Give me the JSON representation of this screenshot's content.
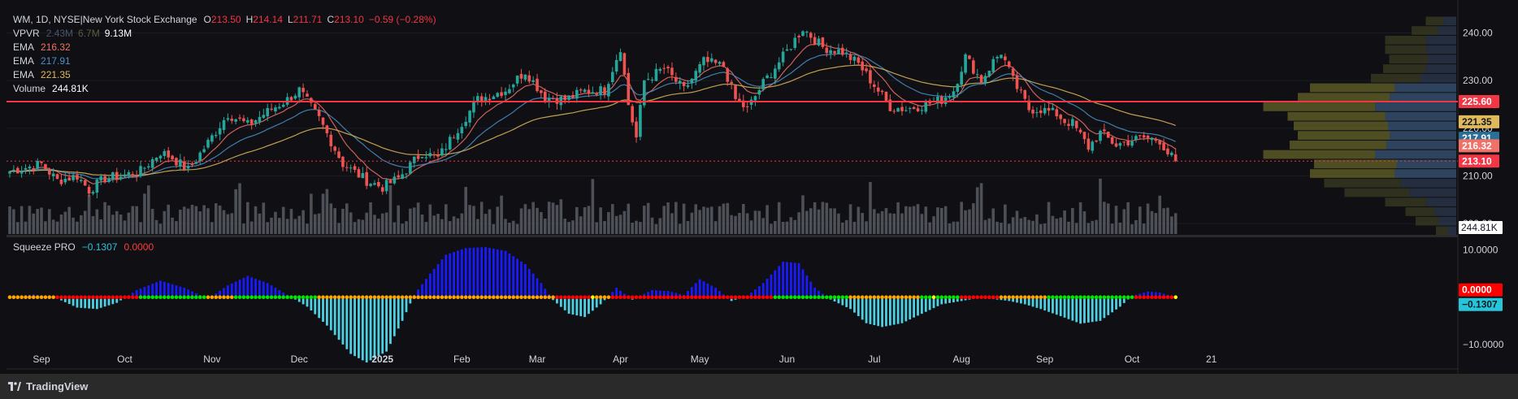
{
  "header": {
    "symbol_line": "WM, 1D, NYSE|New York Stock Exchange",
    "open_label": "O",
    "open_value": "213.50",
    "high_label": "H",
    "high_value": "214.14",
    "low_label": "L",
    "low_value": "211.71",
    "close_label": "C",
    "close_value": "213.10",
    "change": "−0.59 (−0.28%)"
  },
  "indicators": {
    "vpvr": {
      "name": "VPVR",
      "v1": "2.43M",
      "v2": "6.7M",
      "v3": "9.13M"
    },
    "ema": [
      {
        "name": "EMA",
        "value": "216.32",
        "color": "#f07167"
      },
      {
        "name": "EMA",
        "value": "217.91",
        "color": "#4a90c8"
      },
      {
        "name": "EMA",
        "value": "221.35",
        "color": "#e0b95a"
      }
    ],
    "volume": {
      "name": "Volume",
      "value": "244.81K"
    },
    "squeeze": {
      "name": "Squeeze PRO",
      "value": "−0.1307",
      "value2": "0.0000"
    }
  },
  "price_axis": {
    "ticks": [
      "240.00",
      "230.00",
      "220.00",
      "210.00",
      "200.00"
    ],
    "tick_values": [
      240,
      230,
      220,
      210,
      200
    ],
    "range": [
      197.8,
      243.5
    ],
    "labels": [
      {
        "text": "225.60",
        "value": 225.6,
        "bg": "#f23645",
        "fg": "#ffffff"
      },
      {
        "text": "221.35",
        "value": 221.35,
        "bg": "#e0b95a",
        "fg": "#131722"
      },
      {
        "text": "217.91",
        "value": 217.91,
        "bg": "#2a6f97",
        "fg": "#ffffff"
      },
      {
        "text": "216.32",
        "value": 216.32,
        "bg": "#f07167",
        "fg": "#ffffff"
      },
      {
        "text": "213.10",
        "value": 213.1,
        "bg": "#f23645",
        "fg": "#ffffff"
      }
    ],
    "volume_label": "244.81K"
  },
  "squeeze_axis": {
    "ticks": [
      "10.0000",
      "−10.0000"
    ],
    "tick_values": [
      10,
      -10
    ],
    "range": [
      -15,
      12.5
    ],
    "labels": [
      {
        "text": "0.0000",
        "bg": "#ff0000",
        "fg": "#ffffff"
      },
      {
        "text": "−0.1307",
        "bg": "#26c6da",
        "fg": "#131722"
      }
    ]
  },
  "time_axis": {
    "labels": [
      {
        "text": "Sep",
        "bold": false
      },
      {
        "text": "Oct",
        "bold": false
      },
      {
        "text": "Nov",
        "bold": false
      },
      {
        "text": "Dec",
        "bold": false
      },
      {
        "text": "2025",
        "bold": true
      },
      {
        "text": "Feb",
        "bold": false
      },
      {
        "text": "Mar",
        "bold": false
      },
      {
        "text": "Apr",
        "bold": false
      },
      {
        "text": "May",
        "bold": false
      },
      {
        "text": "Jun",
        "bold": false
      },
      {
        "text": "Jul",
        "bold": false
      },
      {
        "text": "Aug",
        "bold": false
      },
      {
        "text": "Sep",
        "bold": false
      },
      {
        "text": "Oct",
        "bold": false
      },
      {
        "text": "21",
        "bold": false
      }
    ]
  },
  "colors": {
    "bg": "#0f0f14",
    "up": "#26a69a",
    "down": "#ef5350",
    "resistance": "#f23645",
    "vol_bar": "#5d6068",
    "mom_pos": "#1a1aff",
    "mom_neg": "#4dd0e1",
    "dot_red": "#ff0000",
    "dot_green": "#00e600",
    "dot_orange": "#ffa500",
    "dot_yellow": "#ffff00"
  },
  "brand": {
    "name": "TradingView"
  },
  "chart_data": {
    "type": "candlestick",
    "symbol": "WM",
    "interval": "1D",
    "resistance_level": 225.6,
    "last_close": 213.1,
    "anchors": [
      [
        0,
        211
      ],
      [
        8,
        212.5
      ],
      [
        12,
        209
      ],
      [
        17,
        210
      ],
      [
        20,
        207
      ],
      [
        24,
        209.5
      ],
      [
        28,
        210
      ],
      [
        33,
        211
      ],
      [
        38,
        215
      ],
      [
        41,
        213.8
      ],
      [
        45,
        211.2
      ],
      [
        50,
        217
      ],
      [
        55,
        223
      ],
      [
        60,
        220.7
      ],
      [
        65,
        223.5
      ],
      [
        70,
        226
      ],
      [
        73,
        228
      ],
      [
        78,
        222
      ],
      [
        84,
        212.5
      ],
      [
        90,
        209
      ],
      [
        94,
        207.6
      ],
      [
        98,
        209.5
      ],
      [
        104,
        215
      ],
      [
        108,
        213.7
      ],
      [
        113,
        220
      ],
      [
        118,
        226
      ],
      [
        125,
        228
      ],
      [
        130,
        232
      ],
      [
        135,
        226.5
      ],
      [
        140,
        226
      ],
      [
        145,
        227.8
      ],
      [
        150,
        228
      ],
      [
        154,
        237
      ],
      [
        156,
        225
      ],
      [
        158,
        218
      ],
      [
        160,
        230
      ],
      [
        165,
        232.6
      ],
      [
        170,
        228
      ],
      [
        175,
        234
      ],
      [
        180,
        233
      ],
      [
        183,
        226
      ],
      [
        186,
        224
      ],
      [
        190,
        229.5
      ],
      [
        195,
        235
      ],
      [
        200,
        241
      ],
      [
        205,
        237
      ],
      [
        210,
        236
      ],
      [
        214,
        233.5
      ],
      [
        218,
        229
      ],
      [
        222,
        224.5
      ],
      [
        226,
        224
      ],
      [
        230,
        224.8
      ],
      [
        235,
        226
      ],
      [
        238,
        228
      ],
      [
        241,
        235
      ],
      [
        245,
        230
      ],
      [
        248,
        234
      ],
      [
        250,
        236
      ],
      [
        253,
        230
      ],
      [
        257,
        224
      ],
      [
        260,
        224
      ],
      [
        264,
        223
      ],
      [
        266,
        221.5
      ],
      [
        268,
        221
      ],
      [
        272,
        216
      ],
      [
        275,
        219
      ],
      [
        279,
        216.5
      ],
      [
        283,
        217.5
      ],
      [
        286,
        218
      ],
      [
        290,
        217.5
      ],
      [
        292,
        214.8
      ],
      [
        294,
        213.1
      ]
    ],
    "ema_periods": [
      9,
      21,
      50
    ],
    "squeeze_momentum": [
      [
        0,
        0
      ],
      [
        6,
        0.6
      ],
      [
        12,
        -0.3
      ],
      [
        17,
        -2.2
      ],
      [
        22,
        -2.5
      ],
      [
        27,
        -1.2
      ],
      [
        32,
        1.5
      ],
      [
        38,
        3.5
      ],
      [
        44,
        2
      ],
      [
        50,
        -0.3
      ],
      [
        55,
        2.5
      ],
      [
        60,
        4.5
      ],
      [
        65,
        3
      ],
      [
        70,
        0.5
      ],
      [
        75,
        -2
      ],
      [
        80,
        -6
      ],
      [
        86,
        -12
      ],
      [
        90,
        -13.8
      ],
      [
        95,
        -11.5
      ],
      [
        99,
        -5
      ],
      [
        102,
        0.5
      ],
      [
        106,
        5
      ],
      [
        110,
        9
      ],
      [
        115,
        10.4
      ],
      [
        120,
        10.6
      ],
      [
        125,
        9.8
      ],
      [
        130,
        7
      ],
      [
        134,
        3
      ],
      [
        137,
        -0.6
      ],
      [
        141,
        -3.5
      ],
      [
        145,
        -4.2
      ],
      [
        149,
        -1.5
      ],
      [
        153,
        2
      ],
      [
        157,
        -0.5
      ],
      [
        162,
        1.5
      ],
      [
        166,
        1.3
      ],
      [
        170,
        0.5
      ],
      [
        174,
        3.8
      ],
      [
        178,
        2
      ],
      [
        182,
        -0.8
      ],
      [
        186,
        0.3
      ],
      [
        190,
        3
      ],
      [
        195,
        7.5
      ],
      [
        199,
        7.2
      ],
      [
        203,
        2
      ],
      [
        207,
        -0.5
      ],
      [
        212,
        -2.5
      ],
      [
        216,
        -5.5
      ],
      [
        220,
        -6.3
      ],
      [
        225,
        -5.5
      ],
      [
        230,
        -3.5
      ],
      [
        235,
        -1.5
      ],
      [
        240,
        -0.8
      ],
      [
        244,
        -0.2
      ],
      [
        248,
        -0.4
      ],
      [
        252,
        -0.8
      ],
      [
        256,
        -1.5
      ],
      [
        260,
        -2.5
      ],
      [
        265,
        -4
      ],
      [
        270,
        -5.6
      ],
      [
        275,
        -5
      ],
      [
        280,
        -2
      ],
      [
        283,
        0.3
      ],
      [
        287,
        1.2
      ],
      [
        290,
        1
      ],
      [
        292,
        0.5
      ],
      [
        294,
        -0.13
      ]
    ],
    "volume_profile": [
      {
        "price": 242.5,
        "total": 0.15,
        "inva": false
      },
      {
        "price": 240.5,
        "total": 0.22,
        "inva": false
      },
      {
        "price": 238.5,
        "total": 0.35,
        "inva": false
      },
      {
        "price": 236.5,
        "total": 0.35,
        "inva": false
      },
      {
        "price": 234.5,
        "total": 0.33,
        "inva": false
      },
      {
        "price": 232.5,
        "total": 0.36,
        "inva": false
      },
      {
        "price": 230.5,
        "total": 0.42,
        "inva": false
      },
      {
        "price": 228.5,
        "total": 0.72,
        "inva": true
      },
      {
        "price": 226.5,
        "total": 0.78,
        "inva": true
      },
      {
        "price": 224.5,
        "total": 0.95,
        "inva": true
      },
      {
        "price": 222.5,
        "total": 0.83,
        "inva": true
      },
      {
        "price": 220.5,
        "total": 0.8,
        "inva": true
      },
      {
        "price": 218.5,
        "total": 0.78,
        "inva": true
      },
      {
        "price": 216.5,
        "total": 0.82,
        "inva": true
      },
      {
        "price": 214.5,
        "total": 0.95,
        "inva": true
      },
      {
        "price": 212.5,
        "total": 0.7,
        "inva": true
      },
      {
        "price": 210.5,
        "total": 0.72,
        "inva": true
      },
      {
        "price": 208.5,
        "total": 0.65,
        "inva": false
      },
      {
        "price": 206.5,
        "total": 0.55,
        "inva": false
      },
      {
        "price": 204.5,
        "total": 0.35,
        "inva": false
      },
      {
        "price": 202.5,
        "total": 0.25,
        "inva": false
      },
      {
        "price": 200.5,
        "total": 0.2,
        "inva": false
      },
      {
        "price": 198.5,
        "total": 0.1,
        "inva": false
      }
    ],
    "xlabel": "",
    "ylabel": "",
    "ylim": [
      197.8,
      243.5
    ]
  }
}
